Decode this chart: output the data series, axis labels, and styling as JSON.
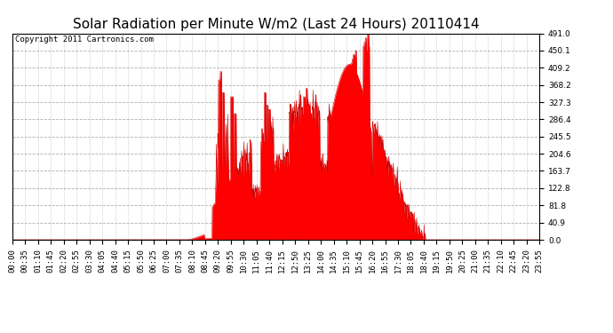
{
  "title": "Solar Radiation per Minute W/m2 (Last 24 Hours) 20110414",
  "copyright": "Copyright 2011 Cartronics.com",
  "bg_color": "#ffffff",
  "plot_bg_color": "#ffffff",
  "fill_color": "#ff0000",
  "line_color": "#cc0000",
  "grid_color_h": "#aaaaaa",
  "grid_color_v": "#aaaaaa",
  "dashed_line_color": "#ff0000",
  "y_tick_labels": [
    "0.0",
    "40.9",
    "81.8",
    "122.8",
    "163.7",
    "204.6",
    "245.5",
    "286.4",
    "327.3",
    "368.2",
    "409.2",
    "450.1",
    "491.0"
  ],
  "y_tick_values": [
    0.0,
    40.9,
    81.8,
    122.8,
    163.7,
    204.6,
    245.5,
    286.4,
    327.3,
    368.2,
    409.2,
    450.1,
    491.0
  ],
  "ylim": [
    0.0,
    491.0
  ],
  "x_tick_labels": [
    "00:00",
    "00:35",
    "01:10",
    "01:45",
    "02:20",
    "02:55",
    "03:30",
    "04:05",
    "04:40",
    "05:15",
    "05:50",
    "06:25",
    "07:00",
    "07:35",
    "08:10",
    "08:45",
    "09:20",
    "09:55",
    "10:30",
    "11:05",
    "11:40",
    "12:15",
    "12:50",
    "13:25",
    "14:00",
    "14:35",
    "15:10",
    "15:45",
    "16:20",
    "16:55",
    "17:30",
    "18:05",
    "18:40",
    "19:15",
    "19:50",
    "20:25",
    "21:00",
    "21:35",
    "22:10",
    "22:45",
    "23:20",
    "23:55"
  ],
  "title_fontsize": 11,
  "tick_fontsize": 6.5,
  "copyright_fontsize": 6.5
}
